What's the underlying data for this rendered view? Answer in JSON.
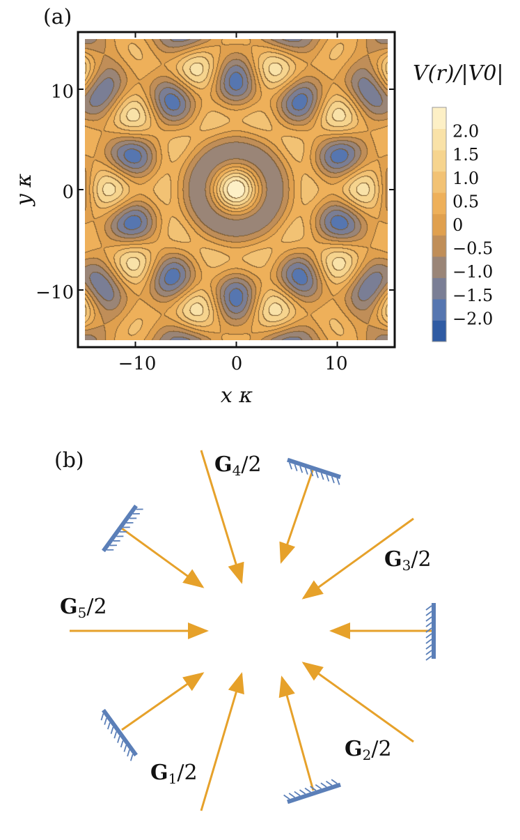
{
  "panel_a": {
    "label": "(a)",
    "x_axis_label": "x κ",
    "y_axis_label": "y κ",
    "x_ticks": [
      "−10",
      "0",
      "10"
    ],
    "y_ticks": [
      "10",
      "0",
      "−10"
    ],
    "colorbar_title": "V(r)/|V0|",
    "colorbar_ticks": [
      "2.0",
      "1.5",
      "1.0",
      "0.5",
      "0",
      "−0.5",
      "−1.0",
      "−1.5",
      "−2.0"
    ],
    "colors": {
      "high": "#fdf3c8",
      "mid": "#e9a54e",
      "low": "#2e58a5",
      "contour": "#7a5a30"
    }
  },
  "chart_data": {
    "type": "heatmap",
    "description_of_function": "five-fold quasicrystal potential V = sum of five cosines",
    "xlim": [
      -15,
      15
    ],
    "ylim": [
      -15,
      15
    ],
    "zlim": [
      -2.5,
      2.5
    ],
    "xlabel": "x κ",
    "ylabel": "y κ",
    "colorbar_label": "V(r)/|V0|",
    "x_ticks": [
      -10,
      0,
      10
    ],
    "y_ticks": [
      -10,
      0,
      10
    ],
    "colorbar_ticks": [
      2.0,
      1.5,
      1.0,
      0.5,
      0,
      -0.5,
      -1.0,
      -1.5,
      -2.0
    ]
  },
  "panel_b": {
    "label": "(b)",
    "vectors": [
      {
        "name": "G1",
        "label_bold": "G",
        "label_sub": "1",
        "label_tail": "/2"
      },
      {
        "name": "G2",
        "label_bold": "G",
        "label_sub": "2",
        "label_tail": "/2"
      },
      {
        "name": "G3",
        "label_bold": "G",
        "label_sub": "3",
        "label_tail": "/2"
      },
      {
        "name": "G4",
        "label_bold": "G",
        "label_sub": "4",
        "label_tail": "/2"
      },
      {
        "name": "G5",
        "label_bold": "G",
        "label_sub": "5",
        "label_tail": "/2"
      }
    ],
    "colors": {
      "arrow": "#e6a12a",
      "mirror": "#5b7fb8"
    }
  }
}
